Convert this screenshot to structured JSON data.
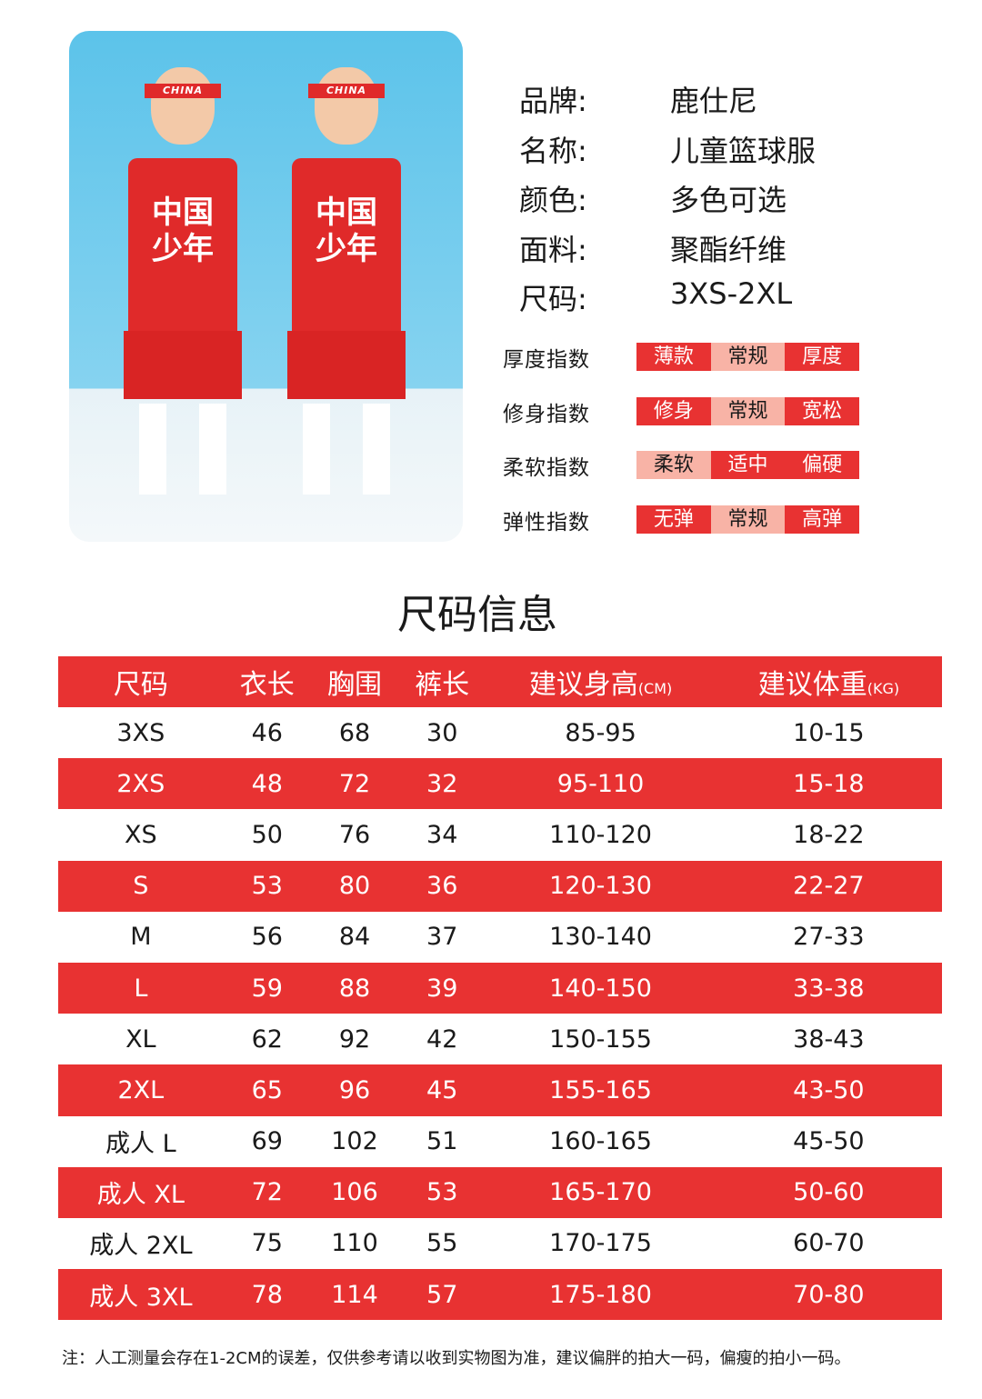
{
  "product_photo": {
    "headband_text": "CHINA",
    "jersey_text": "中国少年"
  },
  "info": [
    {
      "label": "品牌:",
      "value": "鹿仕尼"
    },
    {
      "label": "名称:",
      "value": "儿童篮球服"
    },
    {
      "label": "颜色:",
      "value": "多色可选"
    },
    {
      "label": "面料:",
      "value": "聚酯纤维"
    },
    {
      "label": "尺码:",
      "value": "3XS-2XL"
    }
  ],
  "indices": [
    {
      "label": "厚度指数",
      "options": [
        "薄款",
        "常规",
        "厚度"
      ],
      "selected": 1
    },
    {
      "label": "修身指数",
      "options": [
        "修身",
        "常规",
        "宽松"
      ],
      "selected": 1
    },
    {
      "label": "柔软指数",
      "options": [
        "柔软",
        "适中",
        "偏硬"
      ],
      "selected": 0
    },
    {
      "label": "弹性指数",
      "options": [
        "无弹",
        "常规",
        "高弹"
      ],
      "selected": 1
    }
  ],
  "colors": {
    "accent": "#e83232",
    "selected": "#f8b3a6"
  },
  "size_title": "尺码信息",
  "table": {
    "headers": [
      {
        "main": "尺码",
        "unit": ""
      },
      {
        "main": "衣长",
        "unit": ""
      },
      {
        "main": "胸围",
        "unit": ""
      },
      {
        "main": "裤长",
        "unit": ""
      },
      {
        "main": "建议身高",
        "unit": "(CM)"
      },
      {
        "main": "建议体重",
        "unit": "(KG)"
      }
    ],
    "rows": [
      [
        "3XS",
        "46",
        "68",
        "30",
        "85-95",
        "10-15"
      ],
      [
        "2XS",
        "48",
        "72",
        "32",
        "95-110",
        "15-18"
      ],
      [
        "XS",
        "50",
        "76",
        "34",
        "110-120",
        "18-22"
      ],
      [
        "S",
        "53",
        "80",
        "36",
        "120-130",
        "22-27"
      ],
      [
        "M",
        "56",
        "84",
        "37",
        "130-140",
        "27-33"
      ],
      [
        "L",
        "59",
        "88",
        "39",
        "140-150",
        "33-38"
      ],
      [
        "XL",
        "62",
        "92",
        "42",
        "150-155",
        "38-43"
      ],
      [
        "2XL",
        "65",
        "96",
        "45",
        "155-165",
        "43-50"
      ],
      [
        "成人 L",
        "69",
        "102",
        "51",
        "160-165",
        "45-50"
      ],
      [
        "成人 XL",
        "72",
        "106",
        "53",
        "165-170",
        "50-60"
      ],
      [
        "成人 2XL",
        "75",
        "110",
        "55",
        "170-175",
        "60-70"
      ],
      [
        "成人 3XL",
        "78",
        "114",
        "57",
        "175-180",
        "70-80"
      ]
    ]
  },
  "note": "注：人工测量会存在1-2CM的误差，仅供参考请以收到实物图为准，建议偏胖的拍大一码，偏瘦的拍小一码。"
}
